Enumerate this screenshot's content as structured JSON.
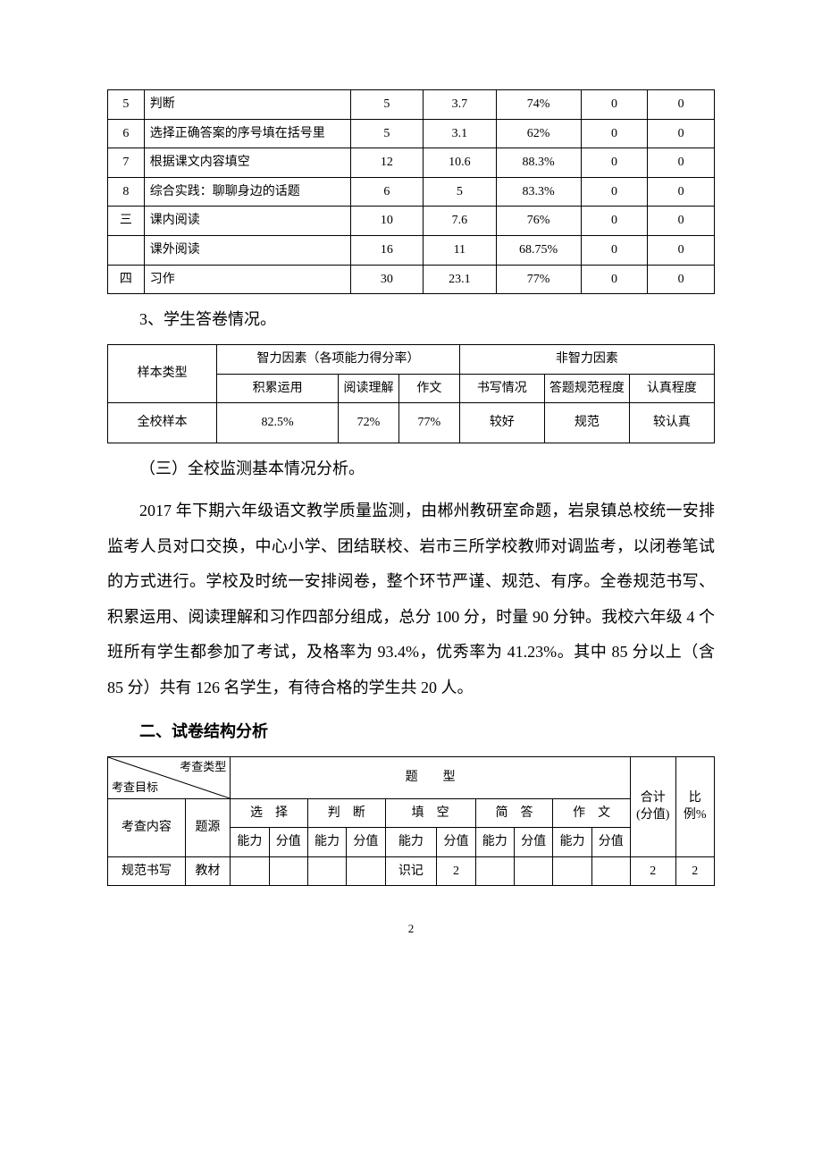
{
  "table1": {
    "col_widths_pct": [
      6,
      34,
      12,
      12,
      14,
      11,
      11
    ],
    "rows": [
      [
        "5",
        "判断",
        "5",
        "3.7",
        "74%",
        "0",
        "0"
      ],
      [
        "6",
        "选择正确答案的序号填在括号里",
        "5",
        "3.1",
        "62%",
        "0",
        "0"
      ],
      [
        "7",
        "根据课文内容填空",
        "12",
        "10.6",
        "88.3%",
        "0",
        "0"
      ],
      [
        "8",
        "综合实践：聊聊身边的话题",
        "6",
        "5",
        "83.3%",
        "0",
        "0"
      ],
      [
        "三",
        "课内阅读",
        "10",
        "7.6",
        "76%",
        "0",
        "0"
      ],
      [
        "",
        "课外阅读",
        "16",
        "11",
        "68.75%",
        "0",
        "0"
      ],
      [
        "四",
        "习作",
        "30",
        "23.1",
        "77%",
        "0",
        "0"
      ]
    ]
  },
  "section_a": "3、学生答卷情况。",
  "table2": {
    "row1": {
      "c1": "样本类型",
      "c2": "智力因素（各项能力得分率）",
      "c3": "非智力因素"
    },
    "row2": [
      "积累运用",
      "阅读理解",
      "作文",
      "书写情况",
      "答题规范程度",
      "认真程度"
    ],
    "row3": [
      "全校样本",
      "82.5%",
      "72%",
      "77%",
      "较好",
      "规范",
      "较认真"
    ]
  },
  "section_b": "（三）全校监测基本情况分析。",
  "paragraph": "2017 年下期六年级语文教学质量监测，由郴州教研室命题，岩泉镇总校统一安排监考人员对口交换，中心小学、团结联校、岩市三所学校教师对调监考，以闭卷笔试的方式进行。学校及时统一安排阅卷，整个环节严谨、规范、有序。全卷规范书写、积累运用、阅读理解和习作四部分组成，总分 100 分，时量 90 分钟。我校六年级 4 个班所有学生都参加了考试，及格率为 93.4%，优秀率为 41.23%。其中 85 分以上（含 85 分）共有 126 名学生，有待合格的学生共 20 人。",
  "section_c": "二、试卷结构分析",
  "table3": {
    "diag_top": "考查类型",
    "diag_bottom": "考查目标",
    "titype": "题　　型",
    "heji": "合计(分值)",
    "bili": "比例%",
    "kaocha": "考查内容",
    "tiyuan": "题源",
    "groups": [
      "选　择",
      "判　断",
      "填　空",
      "简　答",
      "作　文"
    ],
    "sub": {
      "nl": "能力",
      "fz": "分值",
      "nl_wide": "能力"
    },
    "data_row": [
      "规范书写",
      "教材",
      "",
      "",
      "",
      "",
      "识记",
      "2",
      "",
      "",
      "",
      "",
      "2",
      "2"
    ]
  },
  "pagenum": "2"
}
